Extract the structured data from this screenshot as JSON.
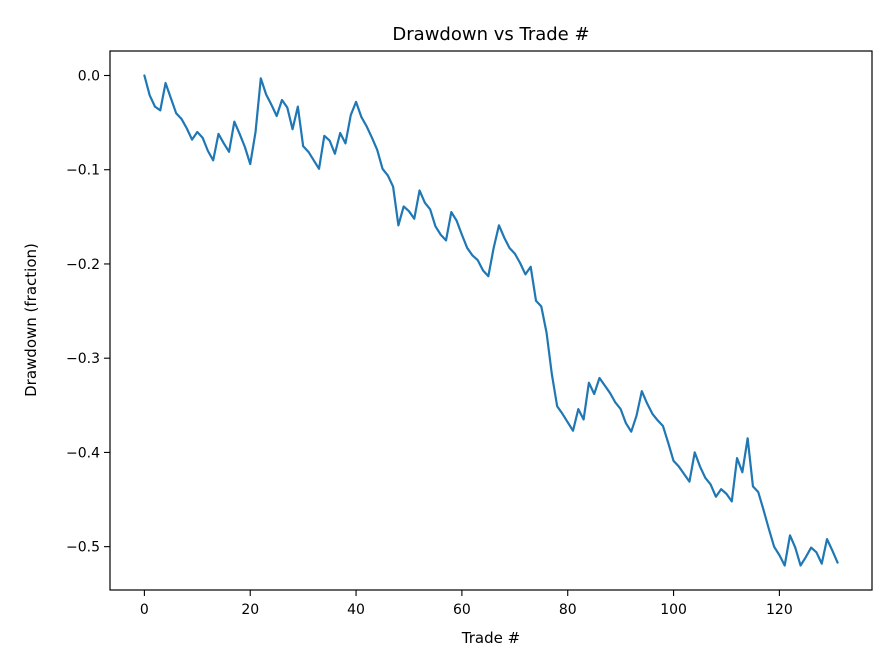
{
  "chart_data": {
    "type": "line",
    "title": "Drawdown vs Trade #",
    "xlabel": "Trade #",
    "ylabel": "Drawdown (fraction)",
    "xlim": [
      -6.5,
      137.5
    ],
    "ylim": [
      -0.546,
      0.026
    ],
    "x_ticks": [
      0,
      20,
      40,
      60,
      80,
      100,
      120
    ],
    "x_tick_labels": [
      "0",
      "20",
      "40",
      "60",
      "80",
      "100",
      "120"
    ],
    "y_ticks": [
      0.0,
      -0.1,
      -0.2,
      -0.3,
      -0.4,
      -0.5
    ],
    "y_tick_labels": [
      "0.0",
      "−0.1",
      "−0.2",
      "−0.3",
      "−0.4",
      "−0.5"
    ],
    "grid": false,
    "series": [
      {
        "color": "#1f77b4",
        "x": [
          0,
          1,
          2,
          3,
          4,
          5,
          6,
          7,
          8,
          9,
          10,
          11,
          12,
          13,
          14,
          15,
          16,
          17,
          18,
          19,
          20,
          21,
          22,
          23,
          24,
          25,
          26,
          27,
          28,
          29,
          30,
          31,
          32,
          33,
          34,
          35,
          36,
          37,
          38,
          39,
          40,
          41,
          42,
          43,
          44,
          45,
          46,
          47,
          48,
          49,
          50,
          51,
          52,
          53,
          54,
          55,
          56,
          57,
          58,
          59,
          60,
          61,
          62,
          63,
          64,
          65,
          66,
          67,
          68,
          69,
          70,
          71,
          72,
          73,
          74,
          75,
          76,
          77,
          78,
          79,
          80,
          81,
          82,
          83,
          84,
          85,
          86,
          87,
          88,
          89,
          90,
          91,
          92,
          93,
          94,
          95,
          96,
          97,
          98,
          99,
          100,
          101,
          102,
          103,
          104,
          105,
          106,
          107,
          108,
          109,
          110,
          111,
          112,
          113,
          114,
          115,
          116,
          117,
          118,
          119,
          120,
          121,
          122,
          123,
          124,
          125,
          126,
          127,
          128,
          129,
          130,
          131
        ],
        "y": [
          0.0,
          -0.021,
          -0.033,
          -0.037,
          -0.008,
          -0.024,
          -0.04,
          -0.046,
          -0.056,
          -0.068,
          -0.06,
          -0.066,
          -0.08,
          -0.09,
          -0.062,
          -0.072,
          -0.081,
          -0.049,
          -0.062,
          -0.076,
          -0.094,
          -0.06,
          -0.003,
          -0.02,
          -0.031,
          -0.043,
          -0.026,
          -0.034,
          -0.057,
          -0.033,
          -0.075,
          -0.081,
          -0.09,
          -0.099,
          -0.064,
          -0.069,
          -0.083,
          -0.061,
          -0.072,
          -0.042,
          -0.028,
          -0.044,
          -0.054,
          -0.066,
          -0.079,
          -0.099,
          -0.106,
          -0.118,
          -0.159,
          -0.139,
          -0.144,
          -0.152,
          -0.122,
          -0.135,
          -0.142,
          -0.16,
          -0.169,
          -0.175,
          -0.145,
          -0.154,
          -0.169,
          -0.183,
          -0.191,
          -0.196,
          -0.207,
          -0.213,
          -0.183,
          -0.159,
          -0.172,
          -0.183,
          -0.189,
          -0.199,
          -0.211,
          -0.203,
          -0.239,
          -0.245,
          -0.273,
          -0.317,
          -0.351,
          -0.359,
          -0.368,
          -0.377,
          -0.354,
          -0.365,
          -0.326,
          -0.338,
          -0.321,
          -0.329,
          -0.337,
          -0.347,
          -0.354,
          -0.369,
          -0.378,
          -0.361,
          -0.335,
          -0.348,
          -0.359,
          -0.366,
          -0.372,
          -0.39,
          -0.409,
          -0.415,
          -0.423,
          -0.431,
          -0.4,
          -0.415,
          -0.427,
          -0.434,
          -0.447,
          -0.439,
          -0.444,
          -0.452,
          -0.406,
          -0.421,
          -0.385,
          -0.436,
          -0.442,
          -0.461,
          -0.481,
          -0.5,
          -0.509,
          -0.52,
          -0.488,
          -0.501,
          -0.52,
          -0.511,
          -0.501,
          -0.506,
          -0.518,
          -0.492,
          -0.504,
          -0.517
        ]
      }
    ]
  }
}
